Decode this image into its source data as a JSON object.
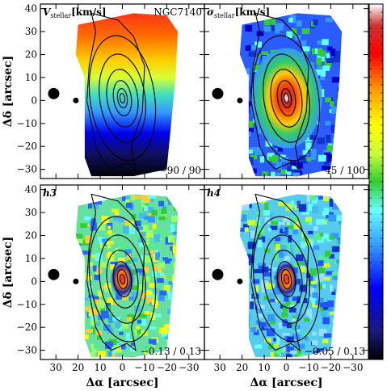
{
  "figure": {
    "galaxy": "NGC7140",
    "xlabel": "Δα [arcsec]",
    "ylabel": "Δδ [arcsec]"
  },
  "panels": [
    {
      "id": "vel",
      "title_main": "V",
      "title_sub": "stellar",
      "title_unit": "[km/s]",
      "range_text": "−90 / 90",
      "style": "gradient"
    },
    {
      "id": "sig",
      "title_main": "σ",
      "title_sub": "stellar",
      "title_unit": "[km/s]",
      "range_text": "45 / 100",
      "style": "sigma"
    },
    {
      "id": "h3",
      "title_main": "h3",
      "title_sub": "",
      "title_unit": "",
      "range_text": "−0.13 / 0.13",
      "style": "noise"
    },
    {
      "id": "h4",
      "title_main": "h4",
      "title_sub": "",
      "title_unit": "",
      "range_text": "−0.05 / 0.13",
      "style": "noise2"
    }
  ],
  "axes": {
    "x_ticks": [
      "30",
      "20",
      "10",
      "0",
      "−10",
      "−20",
      "−30"
    ],
    "x_tick_values": [
      30,
      20,
      10,
      0,
      -10,
      -20,
      -30
    ],
    "y_ticks": [
      "40",
      "30",
      "20",
      "10",
      "0",
      "−10",
      "−20",
      "−30"
    ],
    "y_tick_values": [
      40,
      30,
      20,
      10,
      0,
      -10,
      -20,
      -30
    ],
    "xlim": [
      37,
      -37
    ],
    "ylim": [
      -34,
      42
    ]
  },
  "colorbar": {
    "stops": [
      "#000000",
      "#1a1a80",
      "#0000ff",
      "#3399ff",
      "#66ffff",
      "#33cc33",
      "#ccff33",
      "#ffff00",
      "#ff9900",
      "#ff0000",
      "#cc3333",
      "#ffffff"
    ]
  }
}
